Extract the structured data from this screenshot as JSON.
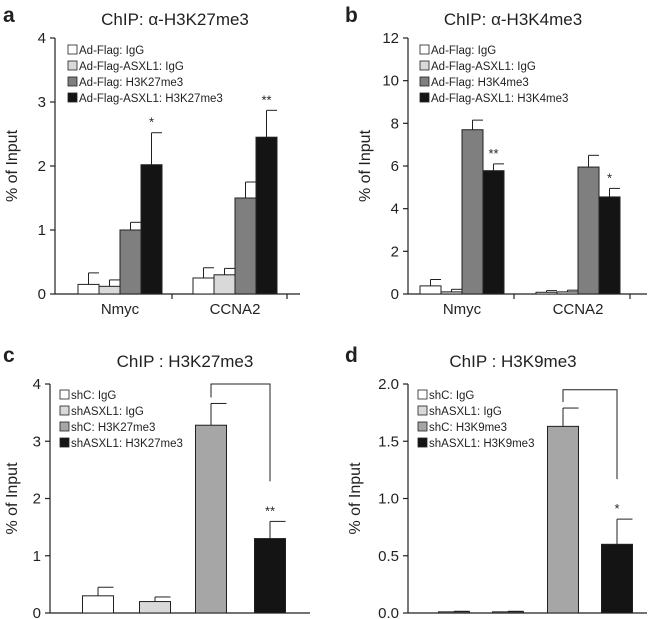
{
  "colors": {
    "white": "#ffffff",
    "light": "#d9d9d9",
    "mid": "#7f7f7f",
    "midlight": "#a6a6a6",
    "black": "#141414",
    "outline": "#231f20"
  },
  "chart_data": [
    {
      "panel": "a",
      "type": "bar",
      "title": "ChIP: α-H3K27me3",
      "ylabel": "% of Input",
      "xlabel": "",
      "ylim": [
        0,
        4
      ],
      "yticks": [
        "0",
        "1",
        "2",
        "3",
        "4"
      ],
      "categories": [
        "Nmyc",
        "CCNA2"
      ],
      "legend_position": "top-left",
      "series": [
        {
          "name": "Ad-Flag: IgG",
          "color": "#ffffff",
          "values": [
            0.15,
            0.25
          ],
          "errors": [
            0.18,
            0.16
          ]
        },
        {
          "name": "Ad-Flag-ASXL1: IgG",
          "color": "#d9d9d9",
          "values": [
            0.12,
            0.3
          ],
          "errors": [
            0.1,
            0.1
          ]
        },
        {
          "name": "Ad-Flag: H3K27me3",
          "color": "#7f7f7f",
          "values": [
            1.0,
            1.5
          ],
          "errors": [
            0.12,
            0.25
          ]
        },
        {
          "name": "Ad-Flag-ASXL1: H3K27me3",
          "color": "#141414",
          "values": [
            2.02,
            2.45
          ],
          "errors": [
            0.5,
            0.42
          ]
        }
      ],
      "annotations": [
        {
          "category": 0,
          "series": 3,
          "text": "*"
        },
        {
          "category": 1,
          "series": 3,
          "text": "**"
        }
      ]
    },
    {
      "panel": "b",
      "type": "bar",
      "title": "ChIP: α-H3K4me3",
      "ylabel": "% of Input",
      "xlabel": "",
      "ylim": [
        0,
        12
      ],
      "yticks": [
        "0",
        "2",
        "4",
        "6",
        "8",
        "10",
        "12"
      ],
      "categories": [
        "Nmyc",
        "CCNA2"
      ],
      "legend_position": "top-left",
      "series": [
        {
          "name": "Ad-Flag: IgG",
          "color": "#ffffff",
          "values": [
            0.38,
            0.08
          ],
          "errors": [
            0.3,
            0.08
          ]
        },
        {
          "name": "Ad-Flag-ASXL1: IgG",
          "color": "#d9d9d9",
          "values": [
            0.1,
            0.1
          ],
          "errors": [
            0.12,
            0.08
          ]
        },
        {
          "name": "Ad-Flag: H3K4me3",
          "color": "#7f7f7f",
          "values": [
            7.7,
            5.95
          ],
          "errors": [
            0.45,
            0.55
          ]
        },
        {
          "name": "Ad-Flag-ASXL1: H3K4me3",
          "color": "#141414",
          "values": [
            5.78,
            4.55
          ],
          "errors": [
            0.32,
            0.4
          ]
        }
      ],
      "annotations": [
        {
          "category": 0,
          "series": 3,
          "text": "**"
        },
        {
          "category": 1,
          "series": 3,
          "text": "*"
        }
      ]
    },
    {
      "panel": "c",
      "type": "bar",
      "title": "ChIP : H3K27me3",
      "ylabel": "% of Input",
      "xlabel": "",
      "ylim": [
        0,
        4
      ],
      "yticks": [
        "0",
        "1",
        "2",
        "3",
        "4"
      ],
      "categories": [
        "shC: IgG",
        "shASXL1: IgG",
        "shC: H3K27me3",
        "shASXL1: H3K27me3"
      ],
      "legend_position": "top-left",
      "series": [
        {
          "name": "shC: IgG",
          "color": "#ffffff",
          "value": 0.3,
          "error": 0.15
        },
        {
          "name": "shASXL1: IgG",
          "color": "#d9d9d9",
          "value": 0.2,
          "error": 0.08
        },
        {
          "name": "shC: H3K27me3",
          "color": "#a6a6a6",
          "value": 3.28,
          "error": 0.38
        },
        {
          "name": "shASXL1: H3K27me3",
          "color": "#141414",
          "value": 1.3,
          "error": 0.3
        }
      ],
      "bracket": {
        "from": 2,
        "to": 3,
        "top": 4.0,
        "text": "**"
      }
    },
    {
      "panel": "d",
      "type": "bar",
      "title": "ChIP : H3K9me3",
      "ylabel": "% of Input",
      "xlabel": "",
      "ylim": [
        0,
        2.0
      ],
      "yticks": [
        "0.0",
        "0.5",
        "1.0",
        "1.5",
        "2.0"
      ],
      "categories": [
        "shC: IgG",
        "shASXL1: IgG",
        "shC: H3K9me3",
        "shASXL1: H3K9me3"
      ],
      "legend_position": "top-left",
      "series": [
        {
          "name": "shC: IgG",
          "color": "#ffffff",
          "value": 0.01,
          "error": 0.005
        },
        {
          "name": "shASXL1: IgG",
          "color": "#d9d9d9",
          "value": 0.01,
          "error": 0.005
        },
        {
          "name": "shC: H3K9me3",
          "color": "#a6a6a6",
          "value": 1.63,
          "error": 0.16
        },
        {
          "name": "shASXL1: H3K9me3",
          "color": "#141414",
          "value": 0.6,
          "error": 0.22
        }
      ],
      "bracket": {
        "from": 2,
        "to": 3,
        "top": 1.95,
        "text": "*"
      }
    }
  ]
}
